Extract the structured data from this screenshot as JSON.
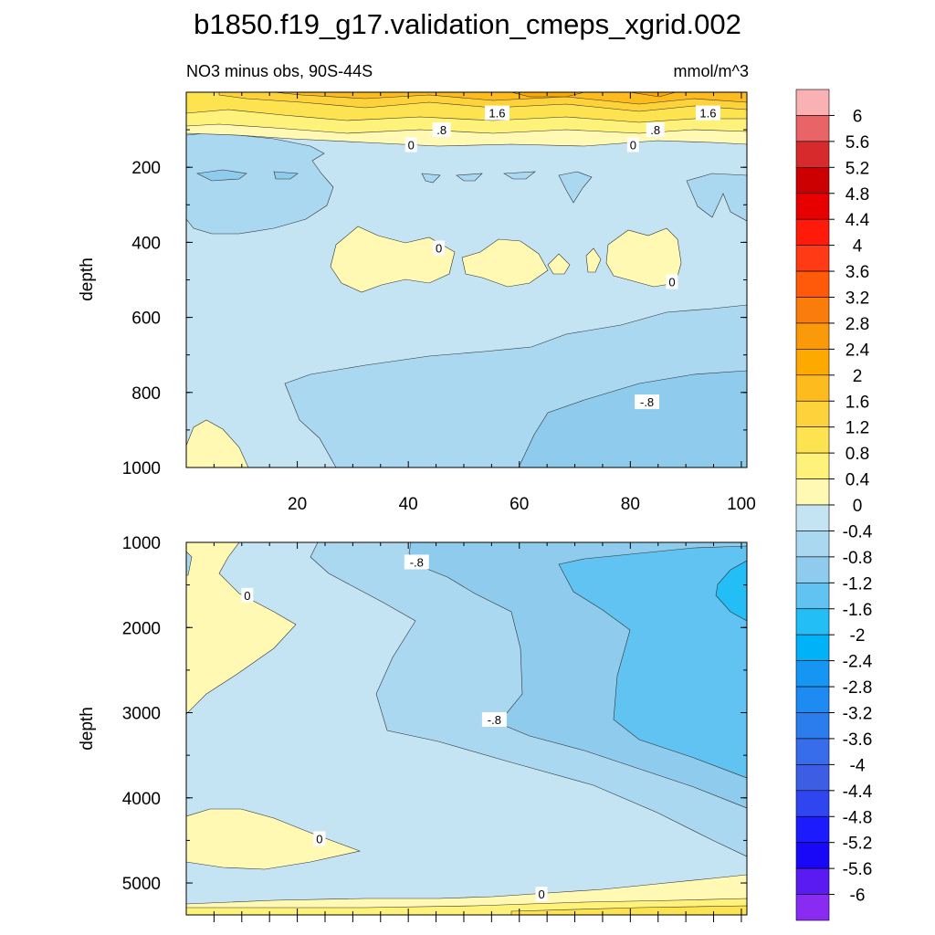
{
  "chart_data": {
    "type": "contour",
    "title": "b1850.f19_g17.validation_cmeps_xgrid.002",
    "subtitle_left": "NO3 minus obs, 90S-44S",
    "subtitle_right": "mmol/m^3",
    "panels": [
      {
        "name": "upper",
        "ylabel": "depth",
        "ylim": [
          0,
          1000
        ],
        "y_reversed": true,
        "xlim": [
          0,
          101
        ],
        "yticks": [
          200,
          400,
          600,
          800,
          1000
        ],
        "ytick_labels": [
          "200",
          "400",
          "600",
          "800",
          "1000"
        ],
        "xticks": [
          20,
          40,
          60,
          80,
          100
        ],
        "xtick_labels": [
          "20",
          "40",
          "60",
          "80",
          "100"
        ],
        "contour_labels": [
          {
            "text": "1.6",
            "x": 56,
            "y": 55
          },
          {
            "text": "1.6",
            "x": 94,
            "y": 55
          },
          {
            "text": ".8",
            "x": 46,
            "y": 100
          },
          {
            "text": ".8",
            "x": 84.5,
            "y": 100
          },
          {
            "text": "0",
            "x": 40.5,
            "y": 140
          },
          {
            "text": "0",
            "x": 80.5,
            "y": 140
          },
          {
            "text": "0",
            "x": 45.5,
            "y": 415
          },
          {
            "text": "0",
            "x": 87.5,
            "y": 505
          },
          {
            "text": "-.8",
            "x": 83,
            "y": 825
          }
        ]
      },
      {
        "name": "lower",
        "ylabel": "depth",
        "ylim": [
          1000,
          5375
        ],
        "y_reversed": true,
        "xlim": [
          0,
          101
        ],
        "yticks": [
          1000,
          2000,
          3000,
          4000,
          5000
        ],
        "ytick_labels": [
          "1000",
          "2000",
          "3000",
          "4000",
          "5000"
        ],
        "contour_labels": [
          {
            "text": "-.8",
            "x": 41.5,
            "y": 1230
          },
          {
            "text": "0",
            "x": 11,
            "y": 1620
          },
          {
            "text": "-.8",
            "x": 55.5,
            "y": 3080
          },
          {
            "text": "0",
            "x": 24,
            "y": 4480
          },
          {
            "text": "0",
            "x": 64,
            "y": 5130
          }
        ]
      }
    ],
    "colorbar": {
      "levels": [
        "6",
        "5.6",
        "5.2",
        "4.8",
        "4.4",
        "4",
        "3.6",
        "3.2",
        "2.8",
        "2.4",
        "2",
        "1.6",
        "1.2",
        "0.8",
        "0.4",
        "0",
        "-0.4",
        "-0.8",
        "-1.2",
        "-1.6",
        "-2",
        "-2.4",
        "-2.8",
        "-3.2",
        "-3.6",
        "-4",
        "-4.4",
        "-4.8",
        "-5.2",
        "-5.6",
        "-6"
      ],
      "colors": [
        "#F9B1B3",
        "#E96466",
        "#D62A2C",
        "#CC0000",
        "#E60000",
        "#FF1A0A",
        "#FF3A14",
        "#FF5A0A",
        "#FA7D0C",
        "#FA9A0A",
        "#FDA900",
        "#FDBB1E",
        "#FDD23A",
        "#FDE350",
        "#FEF27A",
        "#FFF9B4",
        "#C4E4F4",
        "#A9D8F0",
        "#8ECBEC",
        "#60C3F2",
        "#23BEF6",
        "#00B2F8",
        "#1496F2",
        "#1D8BF2",
        "#2B7DEE",
        "#376CEA",
        "#3D5EE4",
        "#2F45F0",
        "#1B1BFE",
        "#1808F7",
        "#5A1AF2",
        "#8A2BF2"
      ]
    },
    "legend_placement": "right"
  }
}
